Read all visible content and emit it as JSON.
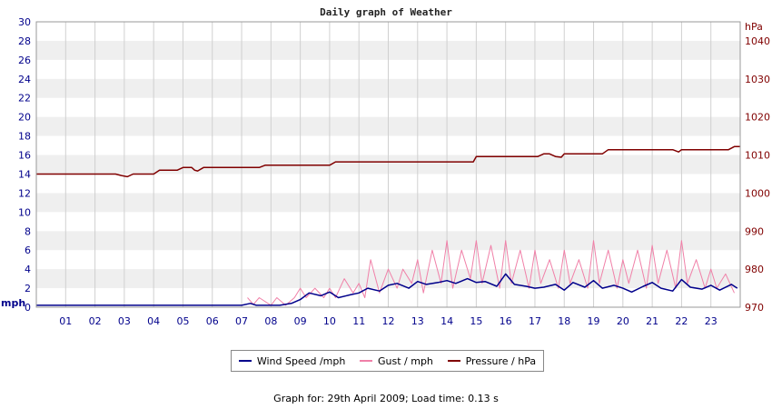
{
  "chart_data": {
    "type": "line",
    "title": "Daily graph of Weather",
    "x_ticks": [
      "01",
      "02",
      "03",
      "04",
      "05",
      "06",
      "07",
      "08",
      "09",
      "10",
      "11",
      "12",
      "13",
      "14",
      "15",
      "16",
      "17",
      "18",
      "19",
      "20",
      "21",
      "22",
      "23"
    ],
    "xlim": [
      0,
      24
    ],
    "left_axis": {
      "unit": "mph",
      "ticks": [
        0,
        2,
        4,
        6,
        8,
        10,
        12,
        14,
        16,
        18,
        20,
        22,
        24,
        26,
        28,
        30
      ],
      "ylim": [
        0,
        30
      ]
    },
    "right_axis": {
      "unit": "hPa",
      "ticks": [
        970,
        980,
        990,
        1000,
        1010,
        1020,
        1030,
        1040
      ],
      "ylim": [
        970,
        1045
      ]
    },
    "grid": true,
    "legend_position": "bottom",
    "series": [
      {
        "name": "Wind Speed /mph",
        "axis": "left",
        "color": "#00008b",
        "x": [
          0,
          7.0,
          7.3,
          7.5,
          7.8,
          8.3,
          8.7,
          9.0,
          9.3,
          9.7,
          10.0,
          10.3,
          10.7,
          11.0,
          11.3,
          11.7,
          12.0,
          12.3,
          12.7,
          13.0,
          13.3,
          13.7,
          14.0,
          14.3,
          14.7,
          15.0,
          15.3,
          15.7,
          16.0,
          16.3,
          16.7,
          17.0,
          17.3,
          17.7,
          18.0,
          18.3,
          18.7,
          19.0,
          19.3,
          19.7,
          20.0,
          20.3,
          20.7,
          21.0,
          21.3,
          21.7,
          22.0,
          22.3,
          22.7,
          23.0,
          23.3,
          23.7,
          23.9
        ],
        "y": [
          0.2,
          0.2,
          0.4,
          0.2,
          0.2,
          0.2,
          0.4,
          0.8,
          1.5,
          1.2,
          1.6,
          1.0,
          1.3,
          1.5,
          2.0,
          1.7,
          2.3,
          2.5,
          2.0,
          2.7,
          2.4,
          2.6,
          2.8,
          2.5,
          3.0,
          2.6,
          2.7,
          2.2,
          3.5,
          2.4,
          2.2,
          2.0,
          2.1,
          2.4,
          1.8,
          2.6,
          2.1,
          2.8,
          2.0,
          2.3,
          2.0,
          1.6,
          2.2,
          2.6,
          2.0,
          1.7,
          2.9,
          2.1,
          1.9,
          2.3,
          1.8,
          2.4,
          2.0
        ]
      },
      {
        "name": "Gust / mph",
        "axis": "left",
        "color": "#f080a8",
        "x": [
          7.2,
          7.4,
          7.6,
          8.0,
          8.2,
          8.5,
          8.8,
          9.0,
          9.2,
          9.5,
          9.8,
          10.0,
          10.2,
          10.5,
          10.8,
          11.0,
          11.2,
          11.4,
          11.7,
          12.0,
          12.3,
          12.5,
          12.8,
          13.0,
          13.2,
          13.5,
          13.8,
          14.0,
          14.2,
          14.5,
          14.8,
          15.0,
          15.2,
          15.5,
          15.8,
          16.0,
          16.2,
          16.5,
          16.8,
          17.0,
          17.2,
          17.5,
          17.8,
          18.0,
          18.2,
          18.5,
          18.8,
          19.0,
          19.2,
          19.5,
          19.8,
          20.0,
          20.2,
          20.5,
          20.8,
          21.0,
          21.2,
          21.5,
          21.8,
          22.0,
          22.2,
          22.5,
          22.8,
          23.0,
          23.2,
          23.5,
          23.8
        ],
        "y": [
          1.0,
          0.3,
          1.0,
          0.2,
          1.0,
          0.2,
          1.0,
          2.0,
          1.0,
          2.0,
          1.0,
          2.0,
          1.0,
          3.0,
          1.5,
          2.5,
          1.0,
          5.0,
          1.5,
          4.0,
          2.0,
          4.0,
          2.5,
          5.0,
          1.5,
          6.0,
          2.5,
          7.0,
          2.0,
          6.0,
          3.0,
          7.0,
          2.5,
          6.5,
          2.0,
          7.0,
          2.5,
          6.0,
          2.0,
          6.0,
          2.5,
          5.0,
          2.0,
          6.0,
          2.5,
          5.0,
          2.0,
          7.0,
          2.5,
          6.0,
          2.0,
          5.0,
          2.5,
          6.0,
          2.0,
          6.5,
          2.5,
          6.0,
          2.0,
          7.0,
          2.5,
          5.0,
          2.0,
          4.0,
          2.0,
          3.5,
          1.5
        ]
      },
      {
        "name": "Pressure / hPa",
        "axis": "right",
        "color": "#800000",
        "x": [
          0,
          2.7,
          2.9,
          3.1,
          3.3,
          4.0,
          4.2,
          4.8,
          5.0,
          5.3,
          5.4,
          5.5,
          5.7,
          7.6,
          7.8,
          10.0,
          10.2,
          14.9,
          15.0,
          17.1,
          17.3,
          17.5,
          17.7,
          17.9,
          18.0,
          19.3,
          19.5,
          21.0,
          21.7,
          21.9,
          22.0,
          22.1,
          23.6,
          23.8,
          24.0
        ],
        "y": [
          1005,
          1005,
          1004.6,
          1004.3,
          1005,
          1005,
          1006,
          1006,
          1006.7,
          1006.7,
          1006,
          1005.8,
          1006.7,
          1006.7,
          1007.3,
          1007.3,
          1008.2,
          1008.2,
          1009.6,
          1009.6,
          1010.3,
          1010.3,
          1009.6,
          1009.4,
          1010.3,
          1010.3,
          1011.4,
          1011.4,
          1011.4,
          1010.8,
          1011.4,
          1011.4,
          1011.4,
          1012.2,
          1012.2
        ]
      }
    ]
  },
  "footer": "Graph for: 29th April 2009; Load time: 0.13 s"
}
